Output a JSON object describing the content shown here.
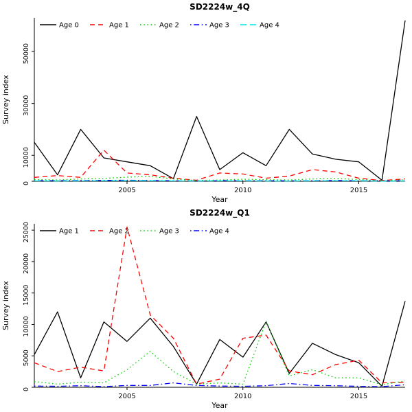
{
  "figure": {
    "background": "#ffffff"
  },
  "chart_data": [
    {
      "type": "line",
      "title": "SD2224w_4Q",
      "xlabel": "Year",
      "ylabel": "Survey index",
      "legend_position": "top-left",
      "grid": false,
      "x": [
        2001,
        2002,
        2003,
        2004,
        2005,
        2006,
        2007,
        2008,
        2009,
        2010,
        2011,
        2012,
        2013,
        2014,
        2015,
        2016,
        2017
      ],
      "xlim": [
        2001,
        2017
      ],
      "xticks": [
        2005,
        2010,
        2015
      ],
      "ylim": [
        0,
        63000
      ],
      "yticks": [
        0,
        10000,
        30000,
        50000
      ],
      "series": [
        {
          "name": "Age 0",
          "color": "#000000",
          "linestyle": "solid",
          "values": [
            15000,
            2500,
            20000,
            9000,
            7500,
            6000,
            1000,
            25000,
            4500,
            11000,
            6000,
            20000,
            10500,
            8500,
            7500,
            400,
            62000
          ]
        },
        {
          "name": "Age 1",
          "color": "#ff0000",
          "linestyle": "dashed",
          "values": [
            1500,
            2200,
            1500,
            12000,
            3200,
            2500,
            1200,
            400,
            3200,
            2800,
            1200,
            2000,
            4500,
            3600,
            1200,
            300,
            900
          ]
        },
        {
          "name": "Age 2",
          "color": "#00cd00",
          "linestyle": "dotted",
          "values": [
            700,
            500,
            900,
            1100,
            1600,
            1900,
            900,
            300,
            500,
            800,
            600,
            500,
            900,
            1100,
            700,
            200,
            600
          ]
        },
        {
          "name": "Age 3",
          "color": "#0000ff",
          "linestyle": "dotdash",
          "values": [
            250,
            200,
            300,
            350,
            400,
            300,
            200,
            100,
            200,
            250,
            200,
            150,
            250,
            300,
            200,
            100,
            200
          ]
        },
        {
          "name": "Age 4",
          "color": "#00e5e5",
          "linestyle": "longdash",
          "values": [
            150,
            100,
            150,
            200,
            250,
            200,
            150,
            100,
            150,
            150,
            100,
            100,
            150,
            200,
            150,
            50,
            100
          ]
        }
      ]
    },
    {
      "type": "line",
      "title": "SD2224w_Q1",
      "xlabel": "Year",
      "ylabel": "Survey index",
      "legend_position": "top-left",
      "grid": false,
      "x": [
        2001,
        2002,
        2003,
        2004,
        2005,
        2006,
        2007,
        2008,
        2009,
        2010,
        2011,
        2012,
        2013,
        2014,
        2015,
        2016,
        2017
      ],
      "xlim": [
        2001,
        2017
      ],
      "xticks": [
        2005,
        2010,
        2015
      ],
      "ylim": [
        0,
        26000
      ],
      "yticks": [
        0,
        5000,
        10000,
        15000,
        20000,
        25000
      ],
      "series": [
        {
          "name": "Age 1",
          "color": "#000000",
          "linestyle": "solid",
          "values": [
            5200,
            12000,
            1500,
            10400,
            7300,
            11000,
            6500,
            500,
            7600,
            4800,
            10400,
            2200,
            7000,
            5200,
            3900,
            150,
            13700
          ]
        },
        {
          "name": "Age 2",
          "color": "#ff0000",
          "linestyle": "dashed",
          "values": [
            3900,
            2500,
            3200,
            2600,
            25500,
            11500,
            7800,
            500,
            1300,
            7800,
            8300,
            2600,
            2000,
            3600,
            4300,
            700,
            800
          ]
        },
        {
          "name": "Age 3",
          "color": "#00cd00",
          "linestyle": "dotted",
          "values": [
            900,
            500,
            800,
            700,
            2800,
            5700,
            2500,
            500,
            700,
            500,
            10500,
            1800,
            2800,
            1500,
            1500,
            400,
            1000
          ]
        },
        {
          "name": "Age 4",
          "color": "#0000ff",
          "linestyle": "dotdash",
          "values": [
            200,
            150,
            250,
            100,
            300,
            300,
            700,
            300,
            200,
            150,
            250,
            600,
            300,
            250,
            150,
            100,
            400
          ]
        }
      ]
    }
  ]
}
